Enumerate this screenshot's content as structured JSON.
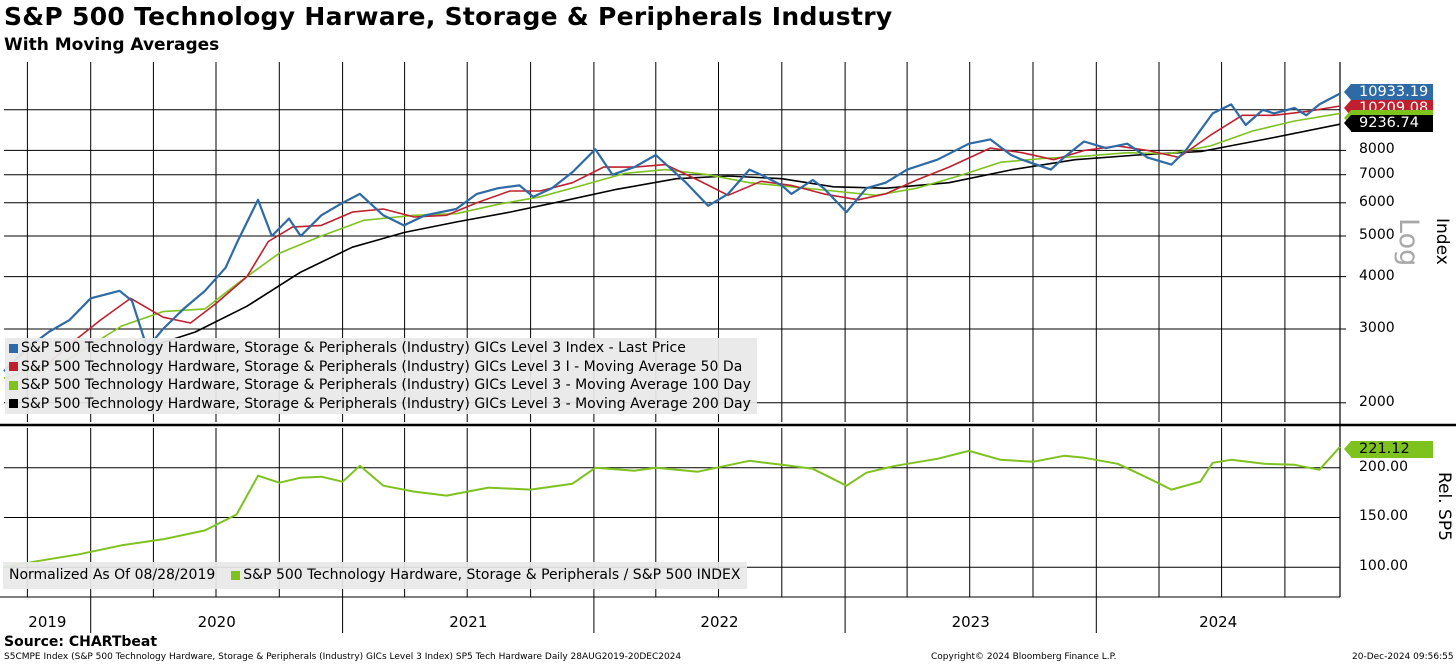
{
  "title": "S&P 500 Technology Harware, Storage & Peripherals Industry",
  "subtitle": "With Moving Averages",
  "source": "Source: CHARTbeat",
  "footer": {
    "left": "S5CMPE Index (S&P 500 Technology Hardware, Storage & Peripherals (Industry) GICs Level 3 Index) SP5 Tech Hardware  Daily 28AUG2019-20DEC2024",
    "center": "Copyright© 2024 Bloomberg Finance L.P.",
    "right": "20-Dec-2024 09:56:55"
  },
  "colors": {
    "price": "#2e6aa6",
    "ma50": "#c0202e",
    "ma100": "#7ec21e",
    "ma200": "#000000",
    "relative": "#7ec21e",
    "grid": "#000000"
  },
  "chart_data": [
    {
      "type": "line",
      "panel": "upper",
      "yscale": "log",
      "ylim": [
        1800,
        13000
      ],
      "xlim": [
        "2019-08-28",
        "2024-12-20"
      ],
      "yticks": [
        2000,
        3000,
        4000,
        5000,
        6000,
        7000,
        8000
      ],
      "ytick_labels": [
        "2000",
        "3000",
        "4000",
        "5000",
        "6000",
        "7000",
        "8000"
      ],
      "ylabel": "Index",
      "scale_label": "Log",
      "legend": "bottom-left",
      "grid": true,
      "series": [
        {
          "name": "S&P 500 Technology Hardware, Storage & Peripherals (Industry) GICs Level 3 Index - Last Price",
          "color": "#2e6aa6",
          "last": "10933.19",
          "points": [
            [
              "2019-08-28",
              2380
            ],
            [
              "2019-10-01",
              2700
            ],
            [
              "2019-11-01",
              2950
            ],
            [
              "2019-12-01",
              3150
            ],
            [
              "2020-01-01",
              3550
            ],
            [
              "2020-02-12",
              3700
            ],
            [
              "2020-03-01",
              3500
            ],
            [
              "2020-03-23",
              2700
            ],
            [
              "2020-04-15",
              3000
            ],
            [
              "2020-05-15",
              3350
            ],
            [
              "2020-06-15",
              3700
            ],
            [
              "2020-07-15",
              4200
            ],
            [
              "2020-07-31",
              4800
            ],
            [
              "2020-08-31",
              6100
            ],
            [
              "2020-09-20",
              5000
            ],
            [
              "2020-10-15",
              5500
            ],
            [
              "2020-11-01",
              5000
            ],
            [
              "2020-12-01",
              5600
            ],
            [
              "2021-01-01",
              6000
            ],
            [
              "2021-01-26",
              6300
            ],
            [
              "2021-03-01",
              5600
            ],
            [
              "2021-03-31",
              5300
            ],
            [
              "2021-05-01",
              5600
            ],
            [
              "2021-06-15",
              5800
            ],
            [
              "2021-07-15",
              6300
            ],
            [
              "2021-08-15",
              6500
            ],
            [
              "2021-09-15",
              6600
            ],
            [
              "2021-10-05",
              6200
            ],
            [
              "2021-11-01",
              6500
            ],
            [
              "2021-12-01",
              7100
            ],
            [
              "2022-01-03",
              8050
            ],
            [
              "2022-01-28",
              7000
            ],
            [
              "2022-03-01",
              7300
            ],
            [
              "2022-04-01",
              7800
            ],
            [
              "2022-05-15",
              6700
            ],
            [
              "2022-06-16",
              5900
            ],
            [
              "2022-07-15",
              6300
            ],
            [
              "2022-08-15",
              7200
            ],
            [
              "2022-09-01",
              7000
            ],
            [
              "2022-10-01",
              6600
            ],
            [
              "2022-10-15",
              6300
            ],
            [
              "2022-11-15",
              6800
            ],
            [
              "2022-12-01",
              6500
            ],
            [
              "2023-01-03",
              5700
            ],
            [
              "2023-02-01",
              6500
            ],
            [
              "2023-03-01",
              6700
            ],
            [
              "2023-04-01",
              7200
            ],
            [
              "2023-05-15",
              7600
            ],
            [
              "2023-06-30",
              8300
            ],
            [
              "2023-07-31",
              8500
            ],
            [
              "2023-08-30",
              7800
            ],
            [
              "2023-09-15",
              7600
            ],
            [
              "2023-10-27",
              7200
            ],
            [
              "2023-11-15",
              7700
            ],
            [
              "2023-12-14",
              8400
            ],
            [
              "2024-01-15",
              8100
            ],
            [
              "2024-02-15",
              8300
            ],
            [
              "2024-03-15",
              7700
            ],
            [
              "2024-04-19",
              7400
            ],
            [
              "2024-05-10",
              8000
            ],
            [
              "2024-06-18",
              9800
            ],
            [
              "2024-07-15",
              10300
            ],
            [
              "2024-08-05",
              9200
            ],
            [
              "2024-08-30",
              10000
            ],
            [
              "2024-09-15",
              9800
            ],
            [
              "2024-10-15",
              10100
            ],
            [
              "2024-11-01",
              9700
            ],
            [
              "2024-11-20",
              10300
            ],
            [
              "2024-12-20",
              10933.19
            ]
          ]
        },
        {
          "name": "S&P 500 Technology Hardware, Storage & Peripherals (Industry) GICs Level 3 I - Moving Average 50 Da",
          "color": "#c0202e",
          "last": "10209.08",
          "points": [
            [
              "2019-10-15",
              2350
            ],
            [
              "2019-12-01",
              2750
            ],
            [
              "2020-01-15",
              3150
            ],
            [
              "2020-02-28",
              3550
            ],
            [
              "2020-04-15",
              3200
            ],
            [
              "2020-05-25",
              3100
            ],
            [
              "2020-07-01",
              3450
            ],
            [
              "2020-08-15",
              4000
            ],
            [
              "2020-09-15",
              4850
            ],
            [
              "2020-10-20",
              5250
            ],
            [
              "2020-12-01",
              5300
            ],
            [
              "2021-01-15",
              5700
            ],
            [
              "2021-03-01",
              5800
            ],
            [
              "2021-04-15",
              5550
            ],
            [
              "2021-06-01",
              5600
            ],
            [
              "2021-07-15",
              6000
            ],
            [
              "2021-09-01",
              6400
            ],
            [
              "2021-10-15",
              6400
            ],
            [
              "2021-12-01",
              6700
            ],
            [
              "2022-01-15",
              7300
            ],
            [
              "2022-03-01",
              7300
            ],
            [
              "2022-04-15",
              7400
            ],
            [
              "2022-06-01",
              6800
            ],
            [
              "2022-07-15",
              6250
            ],
            [
              "2022-09-01",
              6750
            ],
            [
              "2022-10-15",
              6600
            ],
            [
              "2022-12-01",
              6300
            ],
            [
              "2023-01-20",
              6100
            ],
            [
              "2023-03-01",
              6300
            ],
            [
              "2023-04-15",
              6800
            ],
            [
              "2023-06-01",
              7300
            ],
            [
              "2023-07-31",
              8100
            ],
            [
              "2023-09-15",
              7900
            ],
            [
              "2023-10-31",
              7600
            ],
            [
              "2023-12-15",
              8000
            ],
            [
              "2024-02-01",
              8200
            ],
            [
              "2024-03-15",
              8000
            ],
            [
              "2024-04-30",
              7700
            ],
            [
              "2024-06-15",
              8700
            ],
            [
              "2024-07-31",
              9700
            ],
            [
              "2024-09-15",
              9700
            ],
            [
              "2024-11-01",
              9900
            ],
            [
              "2024-12-20",
              10209.08
            ]
          ]
        },
        {
          "name": "S&P 500 Technology Hardware, Storage & Peripherals (Industry) GICs Level 3 - Moving Average 100 Day",
          "color": "#7ec21e",
          "last": "",
          "points": [
            [
              "2019-08-28",
              2290
            ],
            [
              "2019-12-01",
              2550
            ],
            [
              "2020-02-15",
              3050
            ],
            [
              "2020-04-15",
              3300
            ],
            [
              "2020-06-15",
              3350
            ],
            [
              "2020-08-01",
              3850
            ],
            [
              "2020-10-01",
              4550
            ],
            [
              "2020-12-01",
              5000
            ],
            [
              "2021-02-01",
              5450
            ],
            [
              "2021-04-15",
              5600
            ],
            [
              "2021-06-15",
              5650
            ],
            [
              "2021-08-15",
              5950
            ],
            [
              "2021-10-15",
              6200
            ],
            [
              "2021-12-15",
              6600
            ],
            [
              "2022-02-15",
              7050
            ],
            [
              "2022-04-15",
              7200
            ],
            [
              "2022-06-15",
              7000
            ],
            [
              "2022-08-15",
              6700
            ],
            [
              "2022-10-15",
              6550
            ],
            [
              "2022-12-15",
              6400
            ],
            [
              "2023-02-15",
              6250
            ],
            [
              "2023-04-15",
              6500
            ],
            [
              "2023-06-15",
              6950
            ],
            [
              "2023-08-15",
              7500
            ],
            [
              "2023-10-15",
              7650
            ],
            [
              "2023-12-15",
              7750
            ],
            [
              "2024-02-15",
              7900
            ],
            [
              "2024-04-15",
              7850
            ],
            [
              "2024-06-15",
              8200
            ],
            [
              "2024-08-15",
              8900
            ],
            [
              "2024-10-15",
              9400
            ],
            [
              "2024-12-20",
              9800
            ]
          ]
        },
        {
          "name": "S&P 500 Technology Hardware, Storage & Peripherals (Industry) GICs Level 3 - Moving Average 200 Day",
          "color": "#000000",
          "last": "9236.74",
          "points": [
            [
              "2020-03-20",
              2700
            ],
            [
              "2020-06-01",
              2950
            ],
            [
              "2020-08-15",
              3400
            ],
            [
              "2020-11-01",
              4100
            ],
            [
              "2021-01-15",
              4700
            ],
            [
              "2021-04-01",
              5100
            ],
            [
              "2021-06-15",
              5400
            ],
            [
              "2021-09-01",
              5700
            ],
            [
              "2021-11-15",
              6050
            ],
            [
              "2022-02-01",
              6450
            ],
            [
              "2022-05-01",
              6850
            ],
            [
              "2022-07-15",
              6950
            ],
            [
              "2022-10-01",
              6850
            ],
            [
              "2022-12-15",
              6550
            ],
            [
              "2023-03-01",
              6500
            ],
            [
              "2023-06-01",
              6700
            ],
            [
              "2023-09-01",
              7200
            ],
            [
              "2023-12-01",
              7600
            ],
            [
              "2024-03-01",
              7800
            ],
            [
              "2024-06-01",
              7950
            ],
            [
              "2024-09-01",
              8500
            ],
            [
              "2024-12-20",
              9236.74
            ]
          ]
        }
      ]
    },
    {
      "type": "line",
      "panel": "lower",
      "ylim": [
        70,
        240
      ],
      "yticks": [
        100,
        150,
        200
      ],
      "ytick_labels": [
        "100.00",
        "150.00",
        "200.00"
      ],
      "ylabel": "Rel. SP5",
      "note": "Normalized As Of 08/28/2019",
      "legend": "bottom-left",
      "series": [
        {
          "name": "S&P 500 Technology Hardware, Storage & Peripherals / S&P 500 INDEX",
          "color": "#7ec21e",
          "last": "221.12",
          "points": [
            [
              "2019-08-28",
              100
            ],
            [
              "2019-10-15",
              106
            ],
            [
              "2019-12-15",
              113
            ],
            [
              "2020-02-15",
              122
            ],
            [
              "2020-04-15",
              128
            ],
            [
              "2020-06-15",
              137
            ],
            [
              "2020-07-31",
              153
            ],
            [
              "2020-08-31",
              192
            ],
            [
              "2020-10-01",
              185
            ],
            [
              "2020-11-01",
              190
            ],
            [
              "2020-12-01",
              191
            ],
            [
              "2021-01-01",
              186
            ],
            [
              "2021-01-26",
              202
            ],
            [
              "2021-03-01",
              182
            ],
            [
              "2021-04-15",
              176
            ],
            [
              "2021-06-01",
              172
            ],
            [
              "2021-08-01",
              180
            ],
            [
              "2021-10-01",
              178
            ],
            [
              "2021-12-01",
              184
            ],
            [
              "2022-01-03",
              200
            ],
            [
              "2022-03-01",
              197
            ],
            [
              "2022-04-01",
              200
            ],
            [
              "2022-06-01",
              196
            ],
            [
              "2022-08-15",
              207
            ],
            [
              "2022-10-01",
              203
            ],
            [
              "2022-11-15",
              199
            ],
            [
              "2023-01-03",
              182
            ],
            [
              "2023-02-01",
              195
            ],
            [
              "2023-03-15",
              202
            ],
            [
              "2023-05-15",
              209
            ],
            [
              "2023-06-30",
              217
            ],
            [
              "2023-08-15",
              208
            ],
            [
              "2023-10-01",
              206
            ],
            [
              "2023-11-15",
              212
            ],
            [
              "2023-12-15",
              210
            ],
            [
              "2024-02-01",
              204
            ],
            [
              "2024-03-15",
              190
            ],
            [
              "2024-04-19",
              178
            ],
            [
              "2024-05-31",
              186
            ],
            [
              "2024-06-18",
              205
            ],
            [
              "2024-07-15",
              208
            ],
            [
              "2024-09-01",
              204
            ],
            [
              "2024-10-15",
              203
            ],
            [
              "2024-11-20",
              198
            ],
            [
              "2024-12-20",
              221.12
            ]
          ]
        }
      ]
    }
  ],
  "xaxis": {
    "year_labels": [
      "2019",
      "2020",
      "2021",
      "2022",
      "2023",
      "2024"
    ]
  }
}
